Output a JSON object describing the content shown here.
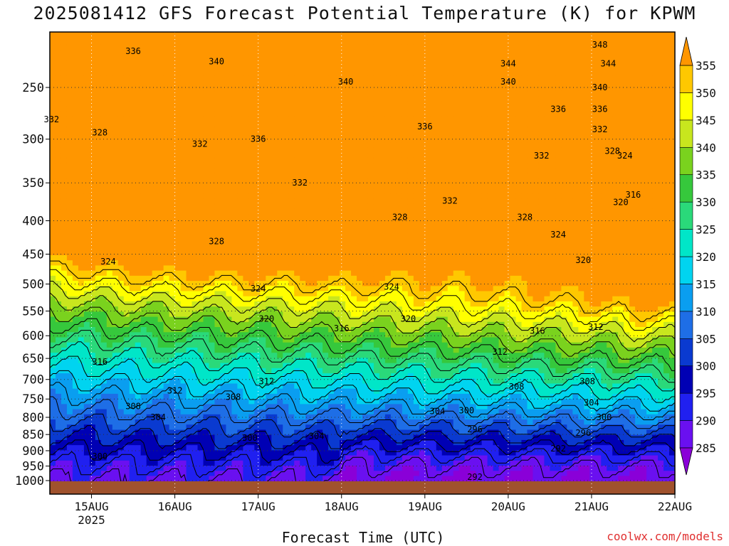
{
  "title": "2025081412 GFS Forecast Potential Temperature (K) for KPWM",
  "xlabel": "Forecast Time (UTC)",
  "credit": "coolwx.com/models",
  "chart_data": {
    "type": "heatmap",
    "title": "2025081412 GFS Forecast Potential Temperature (K) for KPWM",
    "xlabel": "Forecast Time (UTC)",
    "ylabel": "",
    "x_ticks": [
      "15AUG",
      "16AUG",
      "17AUG",
      "18AUG",
      "19AUG",
      "20AUG",
      "21AUG",
      "22AUG"
    ],
    "x_year_label": "2025",
    "x_range_days": [
      14.5,
      22.0
    ],
    "y_ticks": [
      250,
      300,
      350,
      400,
      450,
      500,
      550,
      600,
      650,
      700,
      750,
      800,
      850,
      900,
      950,
      1000
    ],
    "y_range": [
      1020,
      200
    ],
    "y_scale": "log-pressure",
    "colorbar": {
      "levels": [
        285,
        290,
        295,
        300,
        305,
        310,
        315,
        320,
        325,
        330,
        335,
        340,
        345,
        350,
        355
      ],
      "colors": [
        "#8a00d8",
        "#6a10f0",
        "#2020f0",
        "#0000b4",
        "#0a3ad0",
        "#1e6ee6",
        "#0a9ef0",
        "#00d4f0",
        "#00e6c8",
        "#2ad97a",
        "#36c83c",
        "#7ad21e",
        "#c8e61e",
        "#ffff00",
        "#ffc800",
        "#ff9600"
      ]
    },
    "contour_labels": [
      {
        "x": 14.52,
        "p": 280,
        "value": 332
      },
      {
        "x": 15.5,
        "p": 220,
        "value": 336
      },
      {
        "x": 16.5,
        "p": 228,
        "value": 340
      },
      {
        "x": 15.1,
        "p": 293,
        "value": 328
      },
      {
        "x": 16.3,
        "p": 305,
        "value": 332
      },
      {
        "x": 17.0,
        "p": 300,
        "value": 336
      },
      {
        "x": 17.5,
        "p": 350,
        "value": 332
      },
      {
        "x": 18.05,
        "p": 245,
        "value": 340
      },
      {
        "x": 19.0,
        "p": 287,
        "value": 336
      },
      {
        "x": 16.5,
        "p": 430,
        "value": 328
      },
      {
        "x": 19.3,
        "p": 373,
        "value": 332
      },
      {
        "x": 18.7,
        "p": 395,
        "value": 328
      },
      {
        "x": 15.2,
        "p": 462,
        "value": 324
      },
      {
        "x": 17.0,
        "p": 508,
        "value": 324
      },
      {
        "x": 18.6,
        "p": 505,
        "value": 324
      },
      {
        "x": 17.1,
        "p": 565,
        "value": 320
      },
      {
        "x": 18.0,
        "p": 585,
        "value": 316
      },
      {
        "x": 18.8,
        "p": 565,
        "value": 320
      },
      {
        "x": 20.2,
        "p": 395,
        "value": 328
      },
      {
        "x": 20.6,
        "p": 420,
        "value": 324
      },
      {
        "x": 20.35,
        "p": 590,
        "value": 316
      },
      {
        "x": 19.9,
        "p": 635,
        "value": 312
      },
      {
        "x": 15.1,
        "p": 658,
        "value": 316
      },
      {
        "x": 16.0,
        "p": 728,
        "value": 312
      },
      {
        "x": 17.1,
        "p": 705,
        "value": 312
      },
      {
        "x": 16.7,
        "p": 745,
        "value": 308
      },
      {
        "x": 15.5,
        "p": 770,
        "value": 308
      },
      {
        "x": 15.8,
        "p": 800,
        "value": 304
      },
      {
        "x": 17.7,
        "p": 855,
        "value": 304
      },
      {
        "x": 16.9,
        "p": 860,
        "value": 300
      },
      {
        "x": 15.1,
        "p": 918,
        "value": 300
      },
      {
        "x": 19.5,
        "p": 781,
        "value": 300
      },
      {
        "x": 19.15,
        "p": 783,
        "value": 304
      },
      {
        "x": 20.1,
        "p": 718,
        "value": 308
      },
      {
        "x": 20.9,
        "p": 460,
        "value": 320
      },
      {
        "x": 21.5,
        "p": 365,
        "value": 316
      },
      {
        "x": 21.2,
        "p": 230,
        "value": 344
      },
      {
        "x": 21.1,
        "p": 250,
        "value": 340
      },
      {
        "x": 20.0,
        "p": 245,
        "value": 340
      },
      {
        "x": 20.0,
        "p": 230,
        "value": 344
      },
      {
        "x": 21.1,
        "p": 215,
        "value": 348
      },
      {
        "x": 20.6,
        "p": 270,
        "value": 336
      },
      {
        "x": 21.1,
        "p": 270,
        "value": 336
      },
      {
        "x": 21.1,
        "p": 290,
        "value": 332
      },
      {
        "x": 21.25,
        "p": 313,
        "value": 328
      },
      {
        "x": 21.4,
        "p": 318,
        "value": 324
      },
      {
        "x": 20.4,
        "p": 318,
        "value": 332
      },
      {
        "x": 21.35,
        "p": 375,
        "value": 320
      },
      {
        "x": 21.05,
        "p": 582,
        "value": 312
      },
      {
        "x": 20.95,
        "p": 705,
        "value": 308
      },
      {
        "x": 21.0,
        "p": 760,
        "value": 304
      },
      {
        "x": 21.15,
        "p": 800,
        "value": 300
      },
      {
        "x": 20.9,
        "p": 845,
        "value": 296
      },
      {
        "x": 19.6,
        "p": 835,
        "value": 296
      },
      {
        "x": 20.6,
        "p": 893,
        "value": 292
      },
      {
        "x": 19.6,
        "p": 987,
        "value": 292
      }
    ],
    "grid": "dotted"
  }
}
